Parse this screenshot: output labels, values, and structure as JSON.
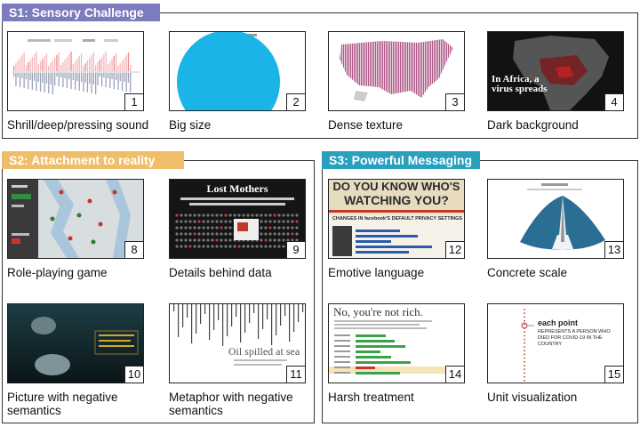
{
  "sections": {
    "s1": {
      "title": "S1: Sensory Challenge",
      "color": "#7b7bbd"
    },
    "s2": {
      "title": "S2: Attachment to reality",
      "color": "#f0be6a"
    },
    "s3": {
      "title": "S3: Powerful Messaging",
      "color": "#2aa0bf"
    }
  },
  "cells": [
    {
      "num": "1",
      "caption": "Shrill/deep/pressing sound"
    },
    {
      "num": "2",
      "caption": "Big size"
    },
    {
      "num": "3",
      "caption": "Dense texture"
    },
    {
      "num": "4",
      "caption": "Dark background"
    },
    {
      "num": "8",
      "caption": "Role-playing game"
    },
    {
      "num": "9",
      "caption": "Details behind data"
    },
    {
      "num": "10",
      "caption": "Picture with negative semantics"
    },
    {
      "num": "11",
      "caption": "Metaphor with negative semantics"
    },
    {
      "num": "12",
      "caption": "Emotive language"
    },
    {
      "num": "13",
      "caption": "Concrete scale"
    },
    {
      "num": "14",
      "caption": "Harsh treatment"
    },
    {
      "num": "15",
      "caption": "Unit visualization"
    }
  ],
  "thumb_text": {
    "africa": "In Africa, a virus spreads",
    "lost_mothers": "Lost Mothers",
    "oil": "Oil spilled at sea",
    "watching_line1": "DO YOU KNOW WHO'S",
    "watching_line2": "WATCHING YOU?",
    "watching_sub": "CHANGES IN facebook'S DEFAULT PRIVACY SETTINGS",
    "rich": "No, you're not rich.",
    "each_point": "each point",
    "represents": "REPRESENTS A PERSON WHO DIED FOR COVID-19 IN THE COUNTRY"
  },
  "colors": {
    "border": "#333333",
    "s1": "#7b7bbd",
    "s2": "#f0be6a",
    "s3": "#2aa0bf",
    "big_circle": "#1ab4e8",
    "texture": "#9c2f6e",
    "watching_red": "#c0392b",
    "harsh_green": "#3aa34a"
  }
}
